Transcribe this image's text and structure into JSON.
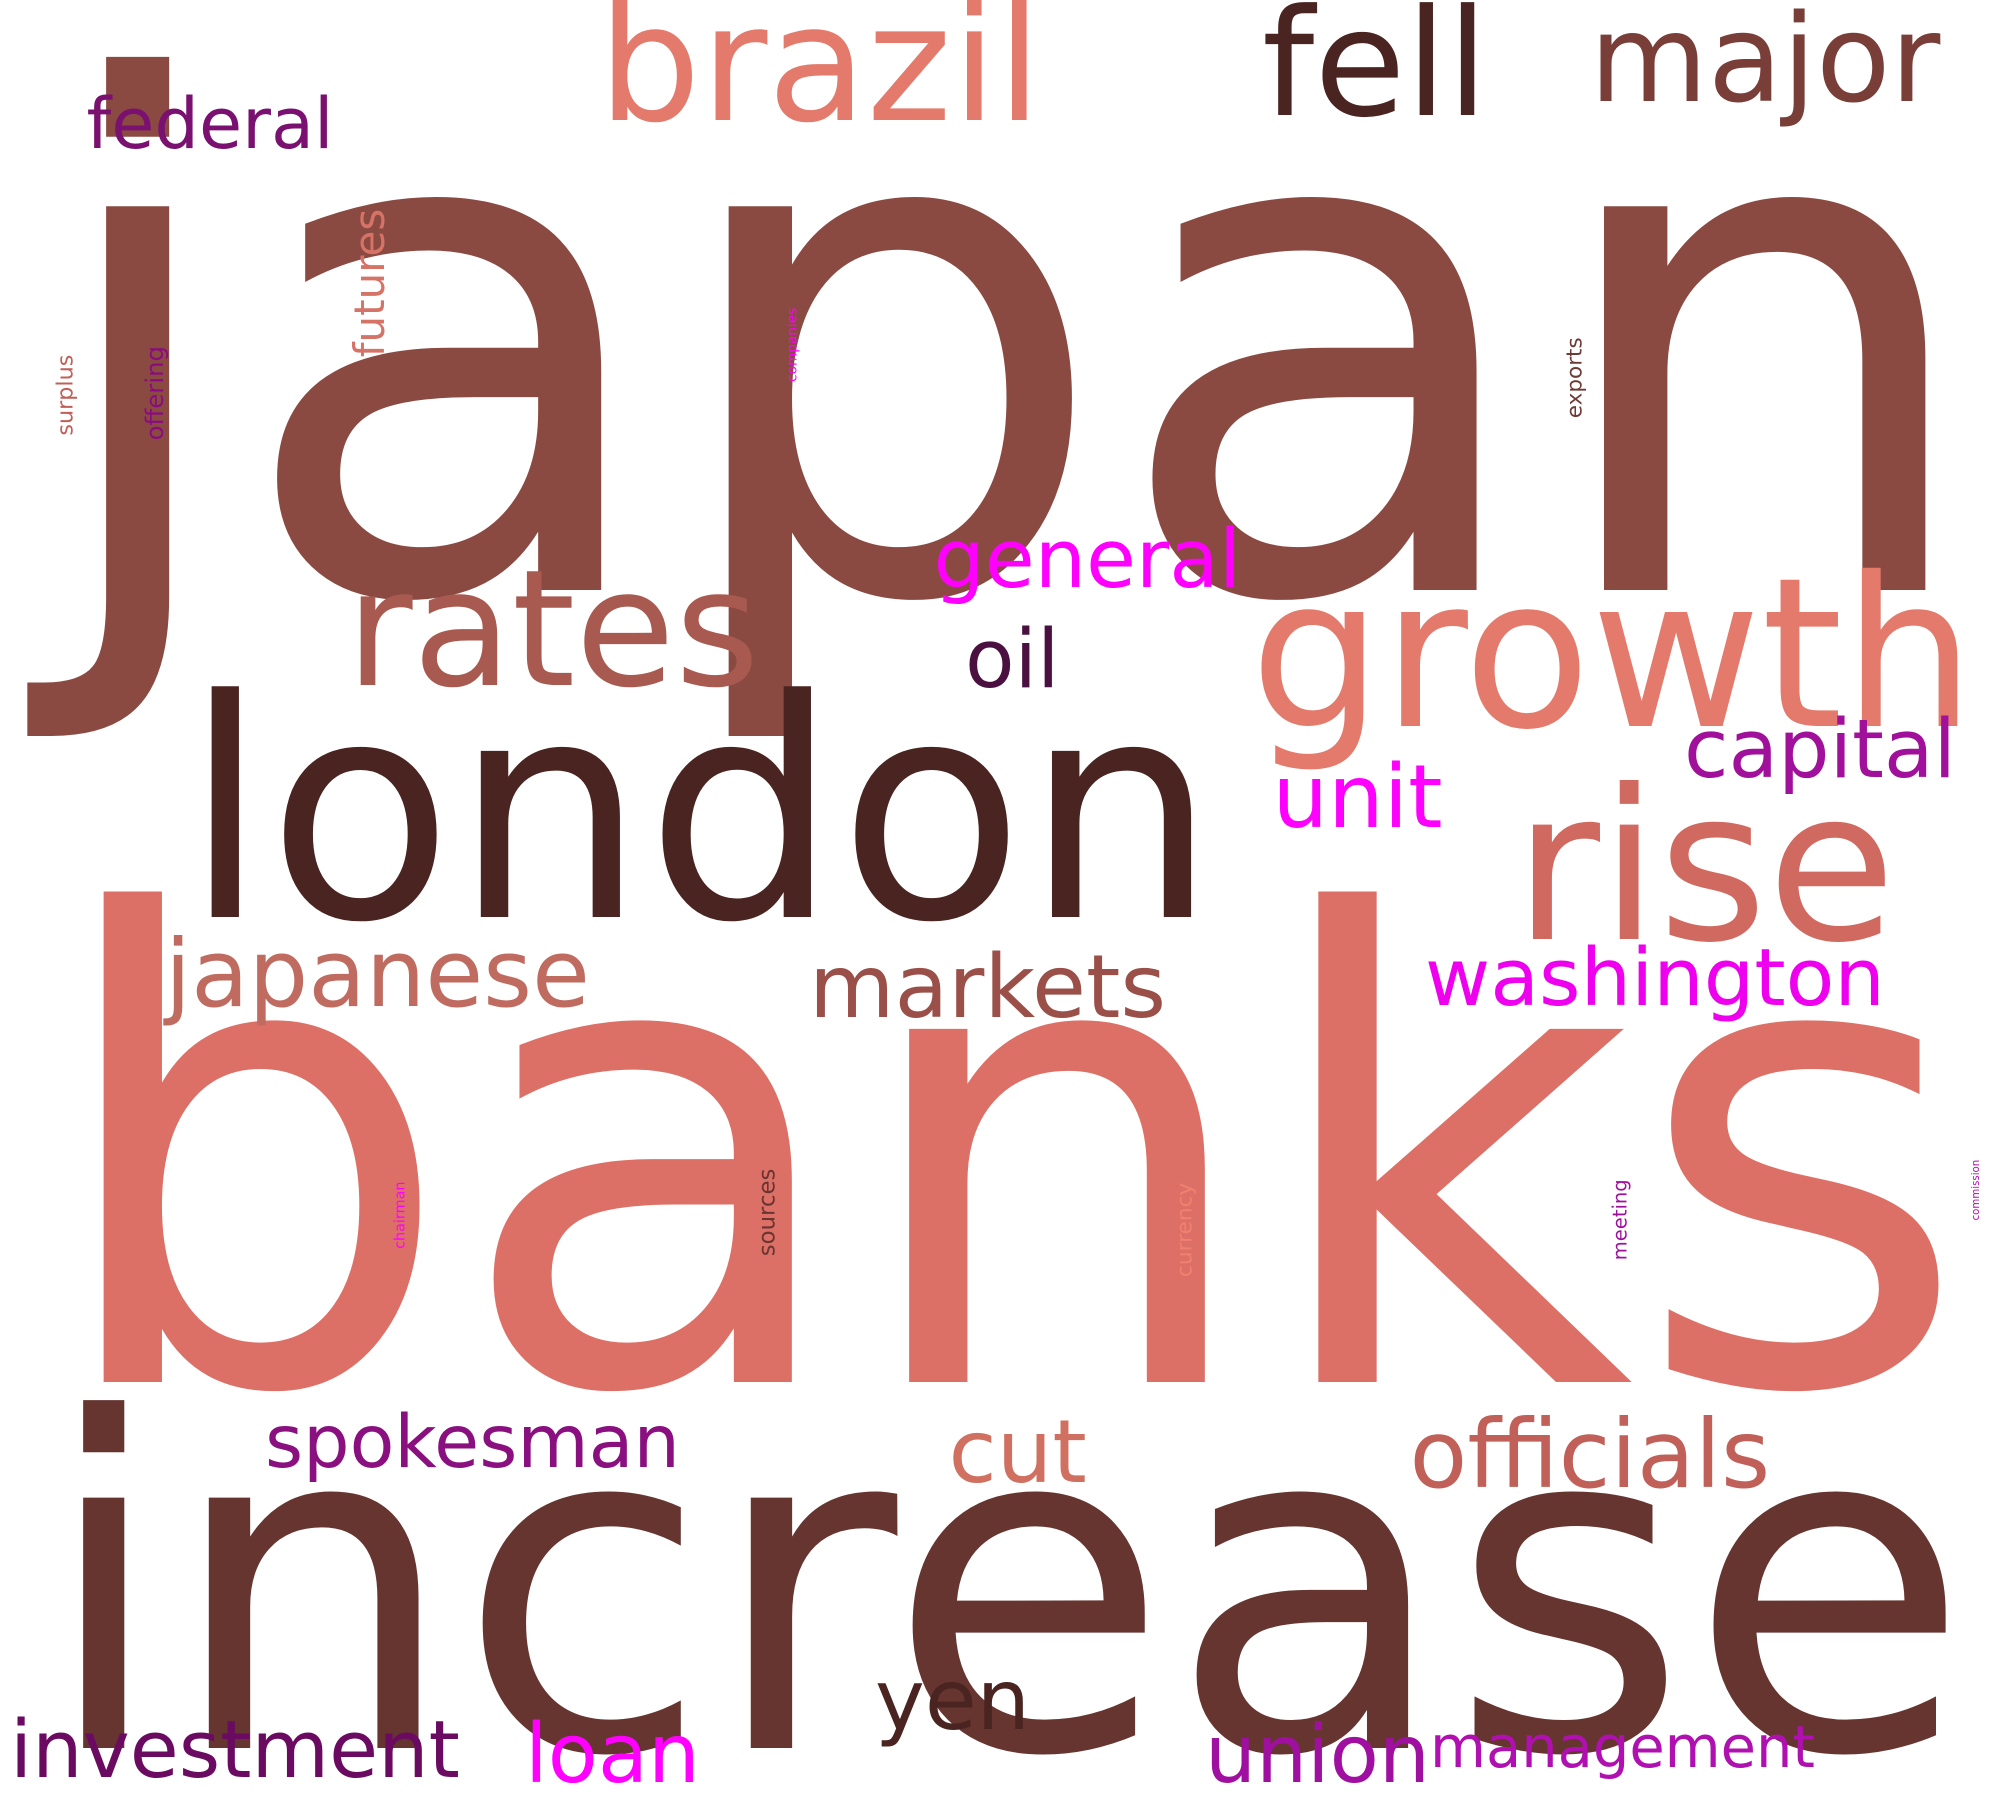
{
  "words": [
    {
      "text": "japan",
      "color": "#8a4a42",
      "orientation": "horizontal"
    },
    {
      "text": "banks",
      "color": "#dd7066",
      "orientation": "horizontal"
    },
    {
      "text": "increase",
      "color": "#663530",
      "orientation": "horizontal"
    },
    {
      "text": "london",
      "color": "#4a2420",
      "orientation": "horizontal"
    },
    {
      "text": "growth",
      "color": "#e37a6c",
      "orientation": "horizontal"
    },
    {
      "text": "rise",
      "color": "#d06a60",
      "orientation": "horizontal"
    },
    {
      "text": "rates",
      "color": "#a85a50",
      "orientation": "horizontal"
    },
    {
      "text": "brazil",
      "color": "#e37a6c",
      "orientation": "horizontal"
    },
    {
      "text": "fell",
      "color": "#4a2420",
      "orientation": "horizontal"
    },
    {
      "text": "major",
      "color": "#7a3e38",
      "orientation": "horizontal"
    },
    {
      "text": "futures",
      "color": "#d57367",
      "orientation": "vertical"
    },
    {
      "text": "federal",
      "color": "#7a1070",
      "orientation": "horizontal"
    },
    {
      "text": "surplus",
      "color": "#c06058",
      "orientation": "vertical"
    },
    {
      "text": "offering",
      "color": "#8a0a80",
      "orientation": "vertical"
    },
    {
      "text": "companies",
      "color": "#ff00ff",
      "orientation": "vertical"
    },
    {
      "text": "exports",
      "color": "#6e3a35",
      "orientation": "vertical"
    },
    {
      "text": "general",
      "color": "#ff00ff",
      "orientation": "horizontal"
    },
    {
      "text": "oil",
      "color": "#4a1040",
      "orientation": "horizontal"
    },
    {
      "text": "capital",
      "color": "#a0109a",
      "orientation": "horizontal"
    },
    {
      "text": "unit",
      "color": "#ff00ff",
      "orientation": "horizontal"
    },
    {
      "text": "japanese",
      "color": "#c06b60",
      "orientation": "horizontal"
    },
    {
      "text": "markets",
      "color": "#9a5048",
      "orientation": "horizontal"
    },
    {
      "text": "washington",
      "color": "#ee00ee",
      "orientation": "horizontal"
    },
    {
      "text": "sources",
      "color": "#6a3530",
      "orientation": "vertical"
    },
    {
      "text": "currency",
      "color": "#f08070",
      "orientation": "vertical"
    },
    {
      "text": "chairman",
      "color": "#ff00ff",
      "orientation": "vertical"
    },
    {
      "text": "meeting",
      "color": "#a010a0",
      "orientation": "vertical"
    },
    {
      "text": "commission",
      "color": "#b010b0",
      "orientation": "vertical"
    },
    {
      "text": "spokesman",
      "color": "#8a1080",
      "orientation": "horizontal"
    },
    {
      "text": "cut",
      "color": "#d07060",
      "orientation": "horizontal"
    },
    {
      "text": "officials",
      "color": "#c06058",
      "orientation": "horizontal"
    },
    {
      "text": "yen",
      "color": "#4a2420",
      "orientation": "horizontal"
    },
    {
      "text": "investment",
      "color": "#6a0a60",
      "orientation": "horizontal"
    },
    {
      "text": "loan",
      "color": "#ff00ff",
      "orientation": "horizontal"
    },
    {
      "text": "union",
      "color": "#a010a0",
      "orientation": "horizontal"
    },
    {
      "text": "management",
      "color": "#b010b0",
      "orientation": "horizontal"
    }
  ]
}
